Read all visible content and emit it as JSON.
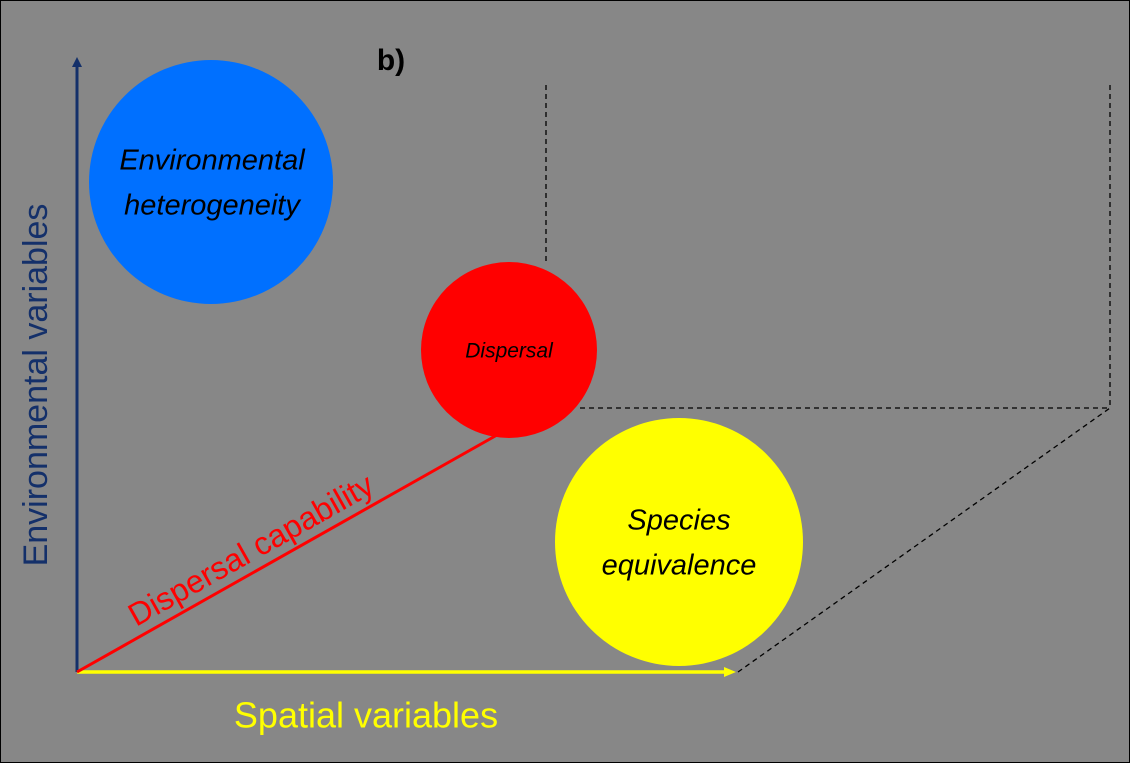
{
  "panel_label": "b)",
  "y_axis_label": "Environmental variables",
  "x_axis_label": "Spatial variables",
  "diagonal_label": "Dispersal capability",
  "circles": [
    {
      "lines": [
        "Environmental",
        "heterogeneity"
      ]
    },
    {
      "lines": [
        "Dispersal"
      ]
    },
    {
      "lines": [
        "Species",
        "equivalence"
      ]
    }
  ]
}
